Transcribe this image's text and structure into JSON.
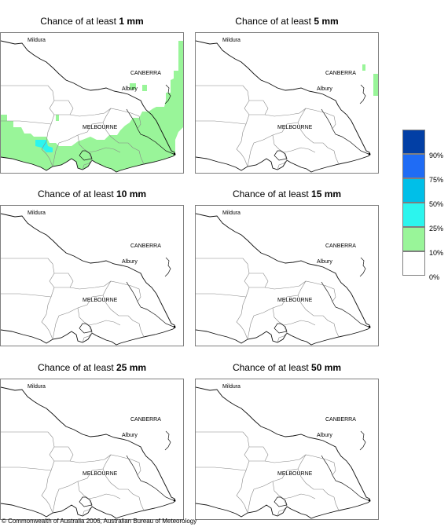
{
  "panels": [
    {
      "title_prefix": "Chance of at least",
      "amount": "1 mm",
      "shading": "rain"
    },
    {
      "title_prefix": "Chance of at least",
      "amount": "5 mm",
      "shading": "east"
    },
    {
      "title_prefix": "Chance of at least",
      "amount": "10 mm",
      "shading": "none"
    },
    {
      "title_prefix": "Chance of at least",
      "amount": "15 mm",
      "shading": "none"
    },
    {
      "title_prefix": "Chance of at least",
      "amount": "25 mm",
      "shading": "none"
    },
    {
      "title_prefix": "Chance of at least",
      "amount": "50 mm",
      "shading": "none"
    }
  ],
  "places": {
    "mildura": "Mildura",
    "canberra": "CANBERRA",
    "albury": "Albury",
    "melbourne": "MELBOURNE"
  },
  "legend": {
    "labels": [
      "90%",
      "75%",
      "50%",
      "25%",
      "10%",
      "0%"
    ],
    "colors": [
      "#023fa5",
      "#1f6cf5",
      "#00bfe8",
      "#2cf5ee",
      "#99f599",
      "#ffffff"
    ]
  },
  "copyright": "© Commonwealth of Australia 2006, Australian Bureau of Meteorology"
}
